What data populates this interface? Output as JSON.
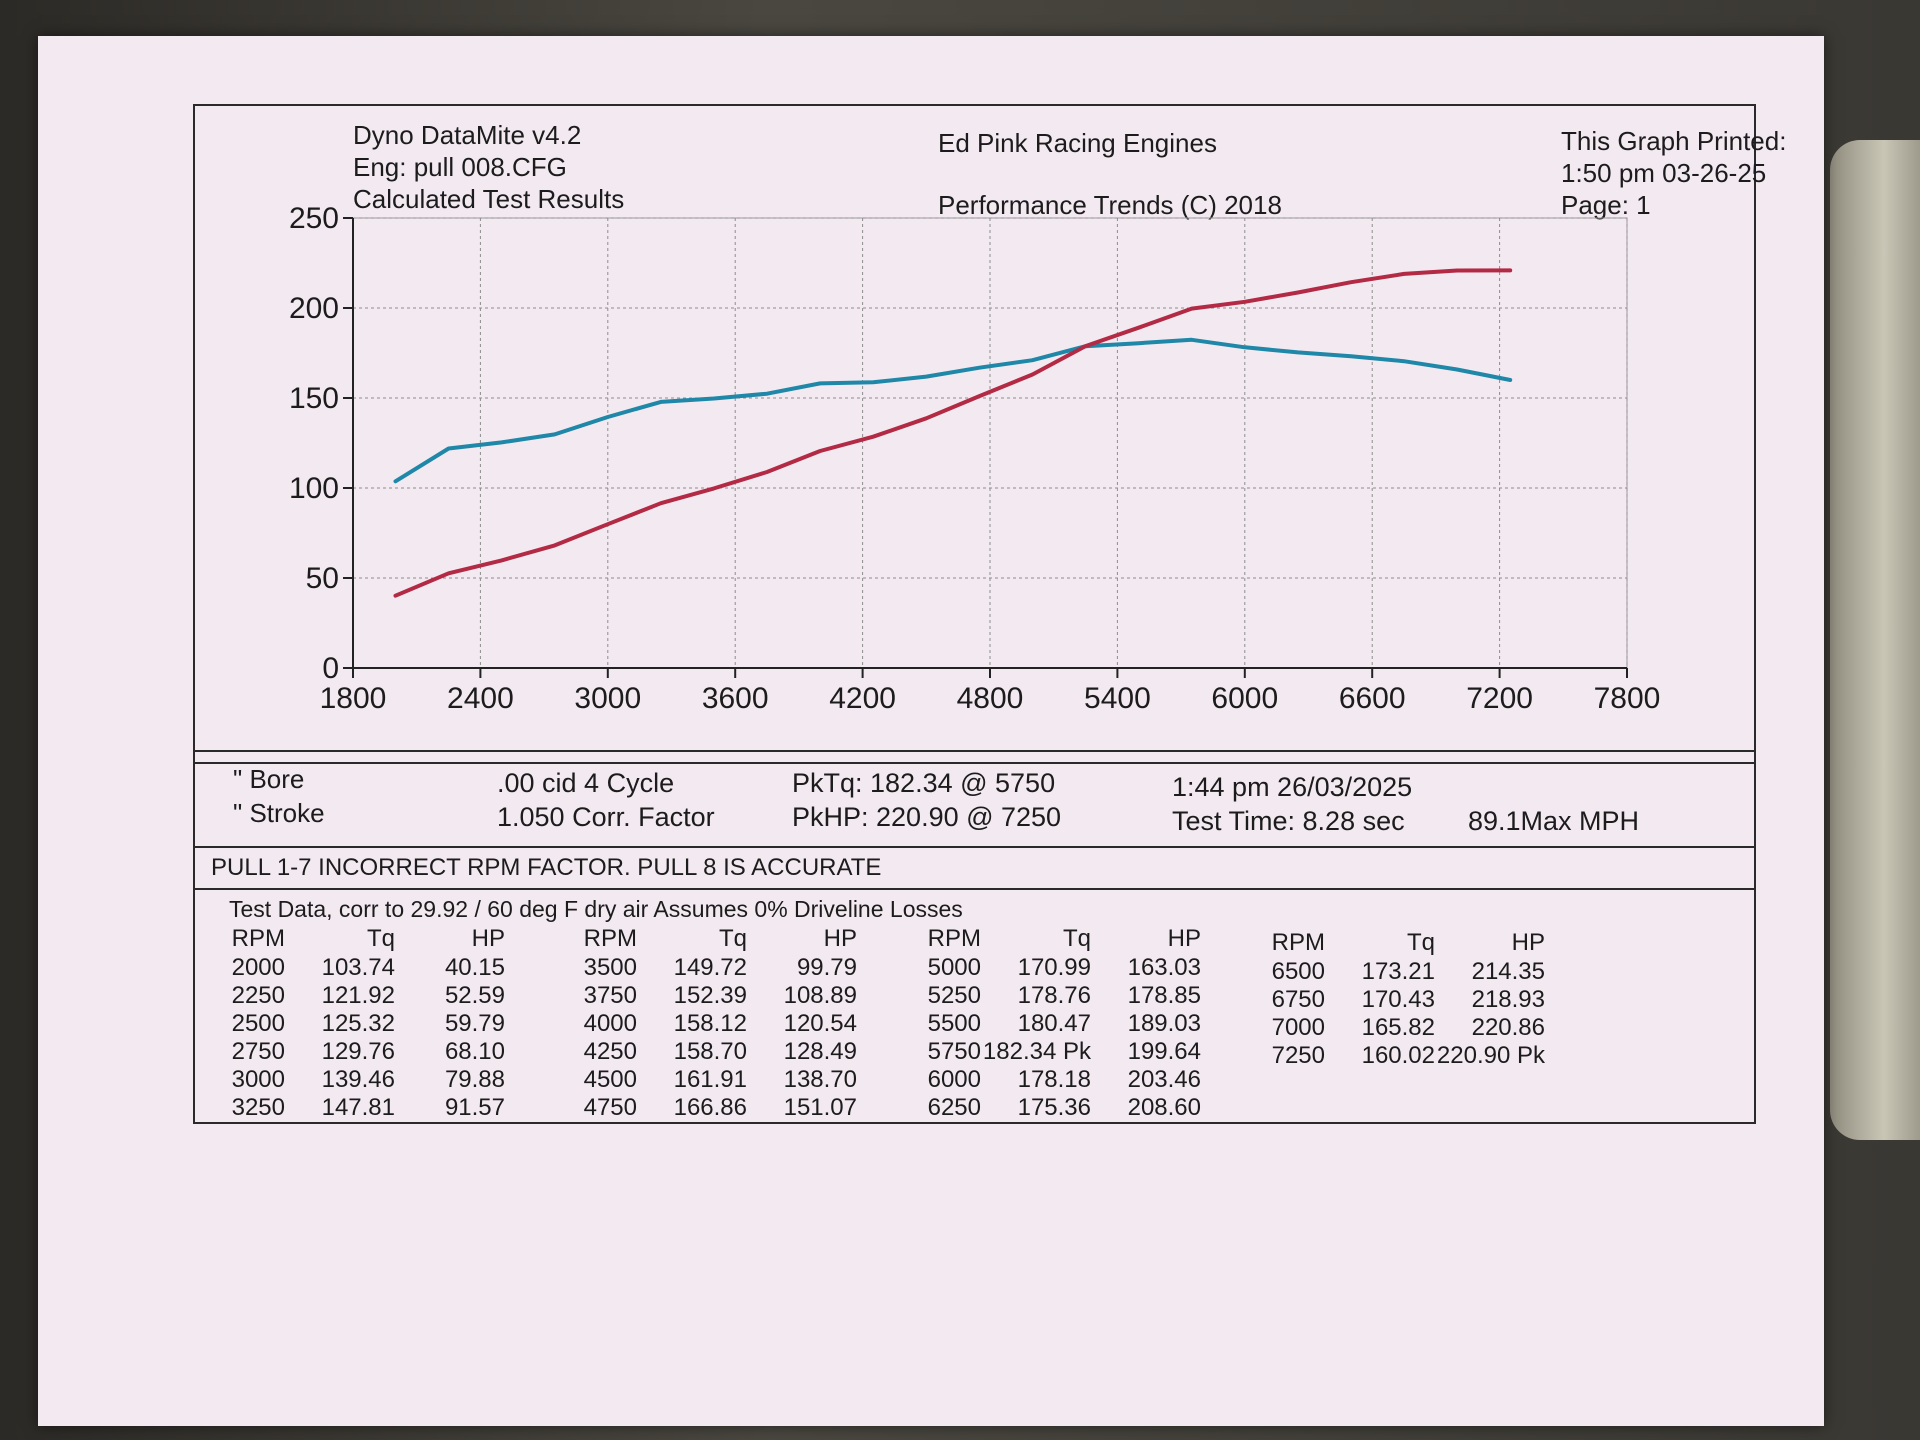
{
  "header": {
    "app": "Dyno DataMite v4.2",
    "config": "Eng: pull 008.CFG",
    "subtitle": "Calculated Test Results",
    "company": "Ed Pink Racing Engines",
    "copyright": "Performance Trends (C) 2018",
    "printed_label": "This Graph Printed:",
    "printed_time": "1:50 pm 03-26-25",
    "page": "Page: 1"
  },
  "chart_data": {
    "type": "line",
    "xlim": [
      1800,
      7800
    ],
    "ylim": [
      0,
      250
    ],
    "x_ticks": [
      1800,
      2400,
      3000,
      3600,
      4200,
      4800,
      5400,
      6000,
      6600,
      7200,
      7800
    ],
    "y_ticks": [
      0,
      50,
      100,
      150,
      200,
      250
    ],
    "grid": true,
    "x": [
      2000,
      2250,
      2500,
      2750,
      3000,
      3250,
      3500,
      3750,
      4000,
      4250,
      4500,
      4750,
      5000,
      5250,
      5500,
      5750,
      6000,
      6250,
      6500,
      6750,
      7000,
      7250
    ],
    "series": [
      {
        "color": "#1f87a8",
        "values": [
          103.74,
          121.92,
          125.32,
          129.76,
          139.46,
          147.81,
          149.72,
          152.39,
          158.12,
          158.7,
          161.91,
          166.86,
          170.99,
          178.76,
          180.47,
          182.34,
          178.18,
          175.36,
          173.21,
          170.43,
          165.82,
          160.02
        ]
      },
      {
        "color": "#b32a45",
        "values": [
          40.15,
          52.59,
          59.79,
          68.1,
          79.88,
          91.57,
          99.79,
          108.89,
          120.54,
          128.49,
          138.7,
          151.07,
          163.03,
          178.85,
          189.03,
          199.64,
          203.46,
          208.6,
          214.35,
          218.93,
          220.86,
          220.9
        ]
      }
    ]
  },
  "engine": {
    "bore": "\" Bore",
    "stroke": "\" Stroke",
    "cid": ".00 cid  4 Cycle",
    "corr": "1.050 Corr. Factor",
    "pktq": "PkTq: 182.34 @  5750",
    "pkhp": "PkHP: 220.90 @  7250",
    "datetime": "1:44 pm  26/03/2025",
    "test_time": "Test Time: 8.28 sec",
    "max_mph": "89.1Max MPH"
  },
  "note": "PULL 1-7 INCORRECT RPM FACTOR. PULL 8 IS ACCURATE",
  "test_data": {
    "caption": "Test Data, corr to 29.92 / 60 deg F dry air  Assumes 0% Driveline Losses",
    "headers": {
      "rpm": "RPM",
      "tq": "Tq",
      "hp": "HP"
    },
    "columns": [
      [
        [
          "2000",
          "103.74",
          "40.15"
        ],
        [
          "2250",
          "121.92",
          "52.59"
        ],
        [
          "2500",
          "125.32",
          "59.79"
        ],
        [
          "2750",
          "129.76",
          "68.10"
        ],
        [
          "3000",
          "139.46",
          "79.88"
        ],
        [
          "3250",
          "147.81",
          "91.57"
        ]
      ],
      [
        [
          "3500",
          "149.72",
          "99.79"
        ],
        [
          "3750",
          "152.39",
          "108.89"
        ],
        [
          "4000",
          "158.12",
          "120.54"
        ],
        [
          "4250",
          "158.70",
          "128.49"
        ],
        [
          "4500",
          "161.91",
          "138.70"
        ],
        [
          "4750",
          "166.86",
          "151.07"
        ]
      ],
      [
        [
          "5000",
          "170.99",
          "163.03"
        ],
        [
          "5250",
          "178.76",
          "178.85"
        ],
        [
          "5500",
          "180.47",
          "189.03"
        ],
        [
          "5750",
          "182.34 Pk",
          "199.64"
        ],
        [
          "6000",
          "178.18",
          "203.46"
        ],
        [
          "6250",
          "175.36",
          "208.60"
        ]
      ],
      [
        [
          "6500",
          "173.21",
          "214.35"
        ],
        [
          "6750",
          "170.43",
          "218.93"
        ],
        [
          "7000",
          "165.82",
          "220.86"
        ],
        [
          "7250",
          "160.02",
          "220.90 Pk"
        ]
      ]
    ]
  }
}
